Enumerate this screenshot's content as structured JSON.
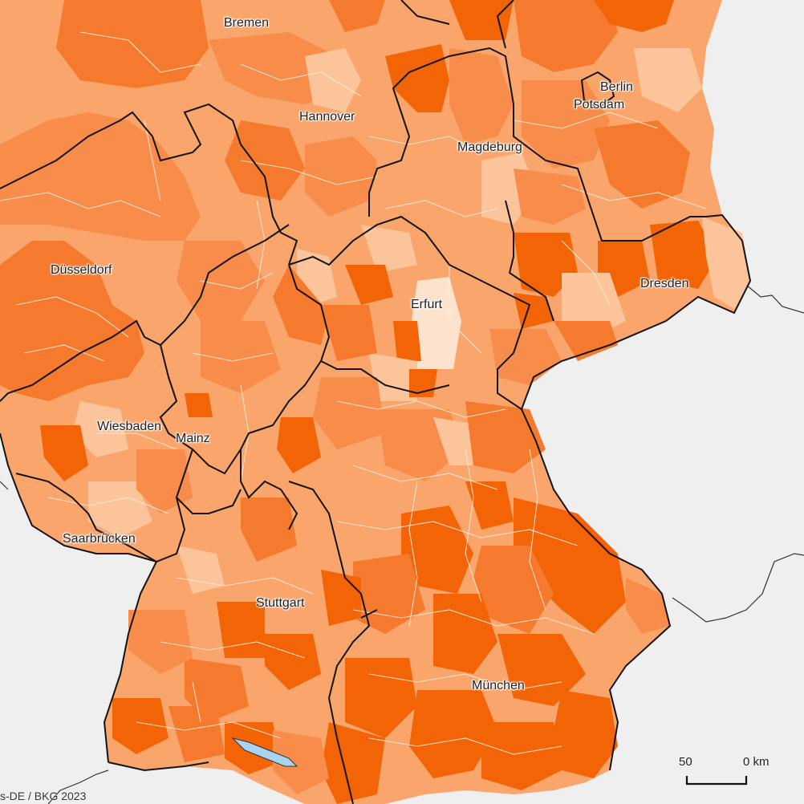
{
  "map": {
    "colors": {
      "background": "#efefef",
      "very_light": "#fde3cd",
      "light": "#fbc49a",
      "medium_light": "#f9a56b",
      "medium": "#f88c4a",
      "dark": "#f57a2e",
      "darkest": "#f26406",
      "district_border": "#fde8d6",
      "state_border": "#111111",
      "neighbor_border": "#333333",
      "lake": "#a9d3ee"
    },
    "cities": [
      {
        "id": "bremen",
        "name": "Bremen"
      },
      {
        "id": "hannover",
        "name": "Hannover"
      },
      {
        "id": "berlin",
        "name": "Berlin"
      },
      {
        "id": "potsdam",
        "name": "Potsdam"
      },
      {
        "id": "magdeburg",
        "name": "Magdeburg"
      },
      {
        "id": "duesseldorf",
        "name": "Düsseldorf"
      },
      {
        "id": "dresden",
        "name": "Dresden"
      },
      {
        "id": "erfurt",
        "name": "Erfurt"
      },
      {
        "id": "wiesbaden",
        "name": "Wiesbaden"
      },
      {
        "id": "mainz",
        "name": "Mainz"
      },
      {
        "id": "saarbruecken",
        "name": "Saarbrücken"
      },
      {
        "id": "stuttgart",
        "name": "Stuttgart"
      },
      {
        "id": "muenchen",
        "name": "München"
      }
    ],
    "scale_bar": {
      "left_label": "50",
      "right_label": "0 km"
    },
    "attribution": "s-DE / BKG 2023"
  }
}
